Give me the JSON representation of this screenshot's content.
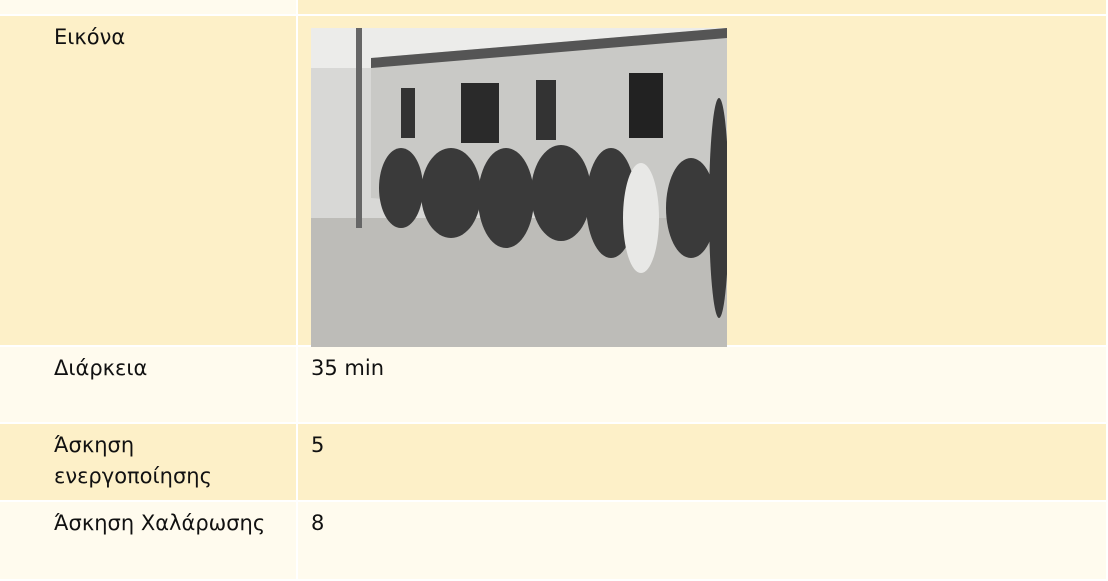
{
  "table": {
    "rows": [
      {
        "label": "Εικόνα"
      },
      {
        "label": "Διάρκεια",
        "value": "35 min"
      },
      {
        "label": "Άσκηση ενεργοποίησης",
        "value": "5"
      },
      {
        "label": "Άσκηση Χαλάρωσης",
        "value": "8"
      }
    ]
  }
}
